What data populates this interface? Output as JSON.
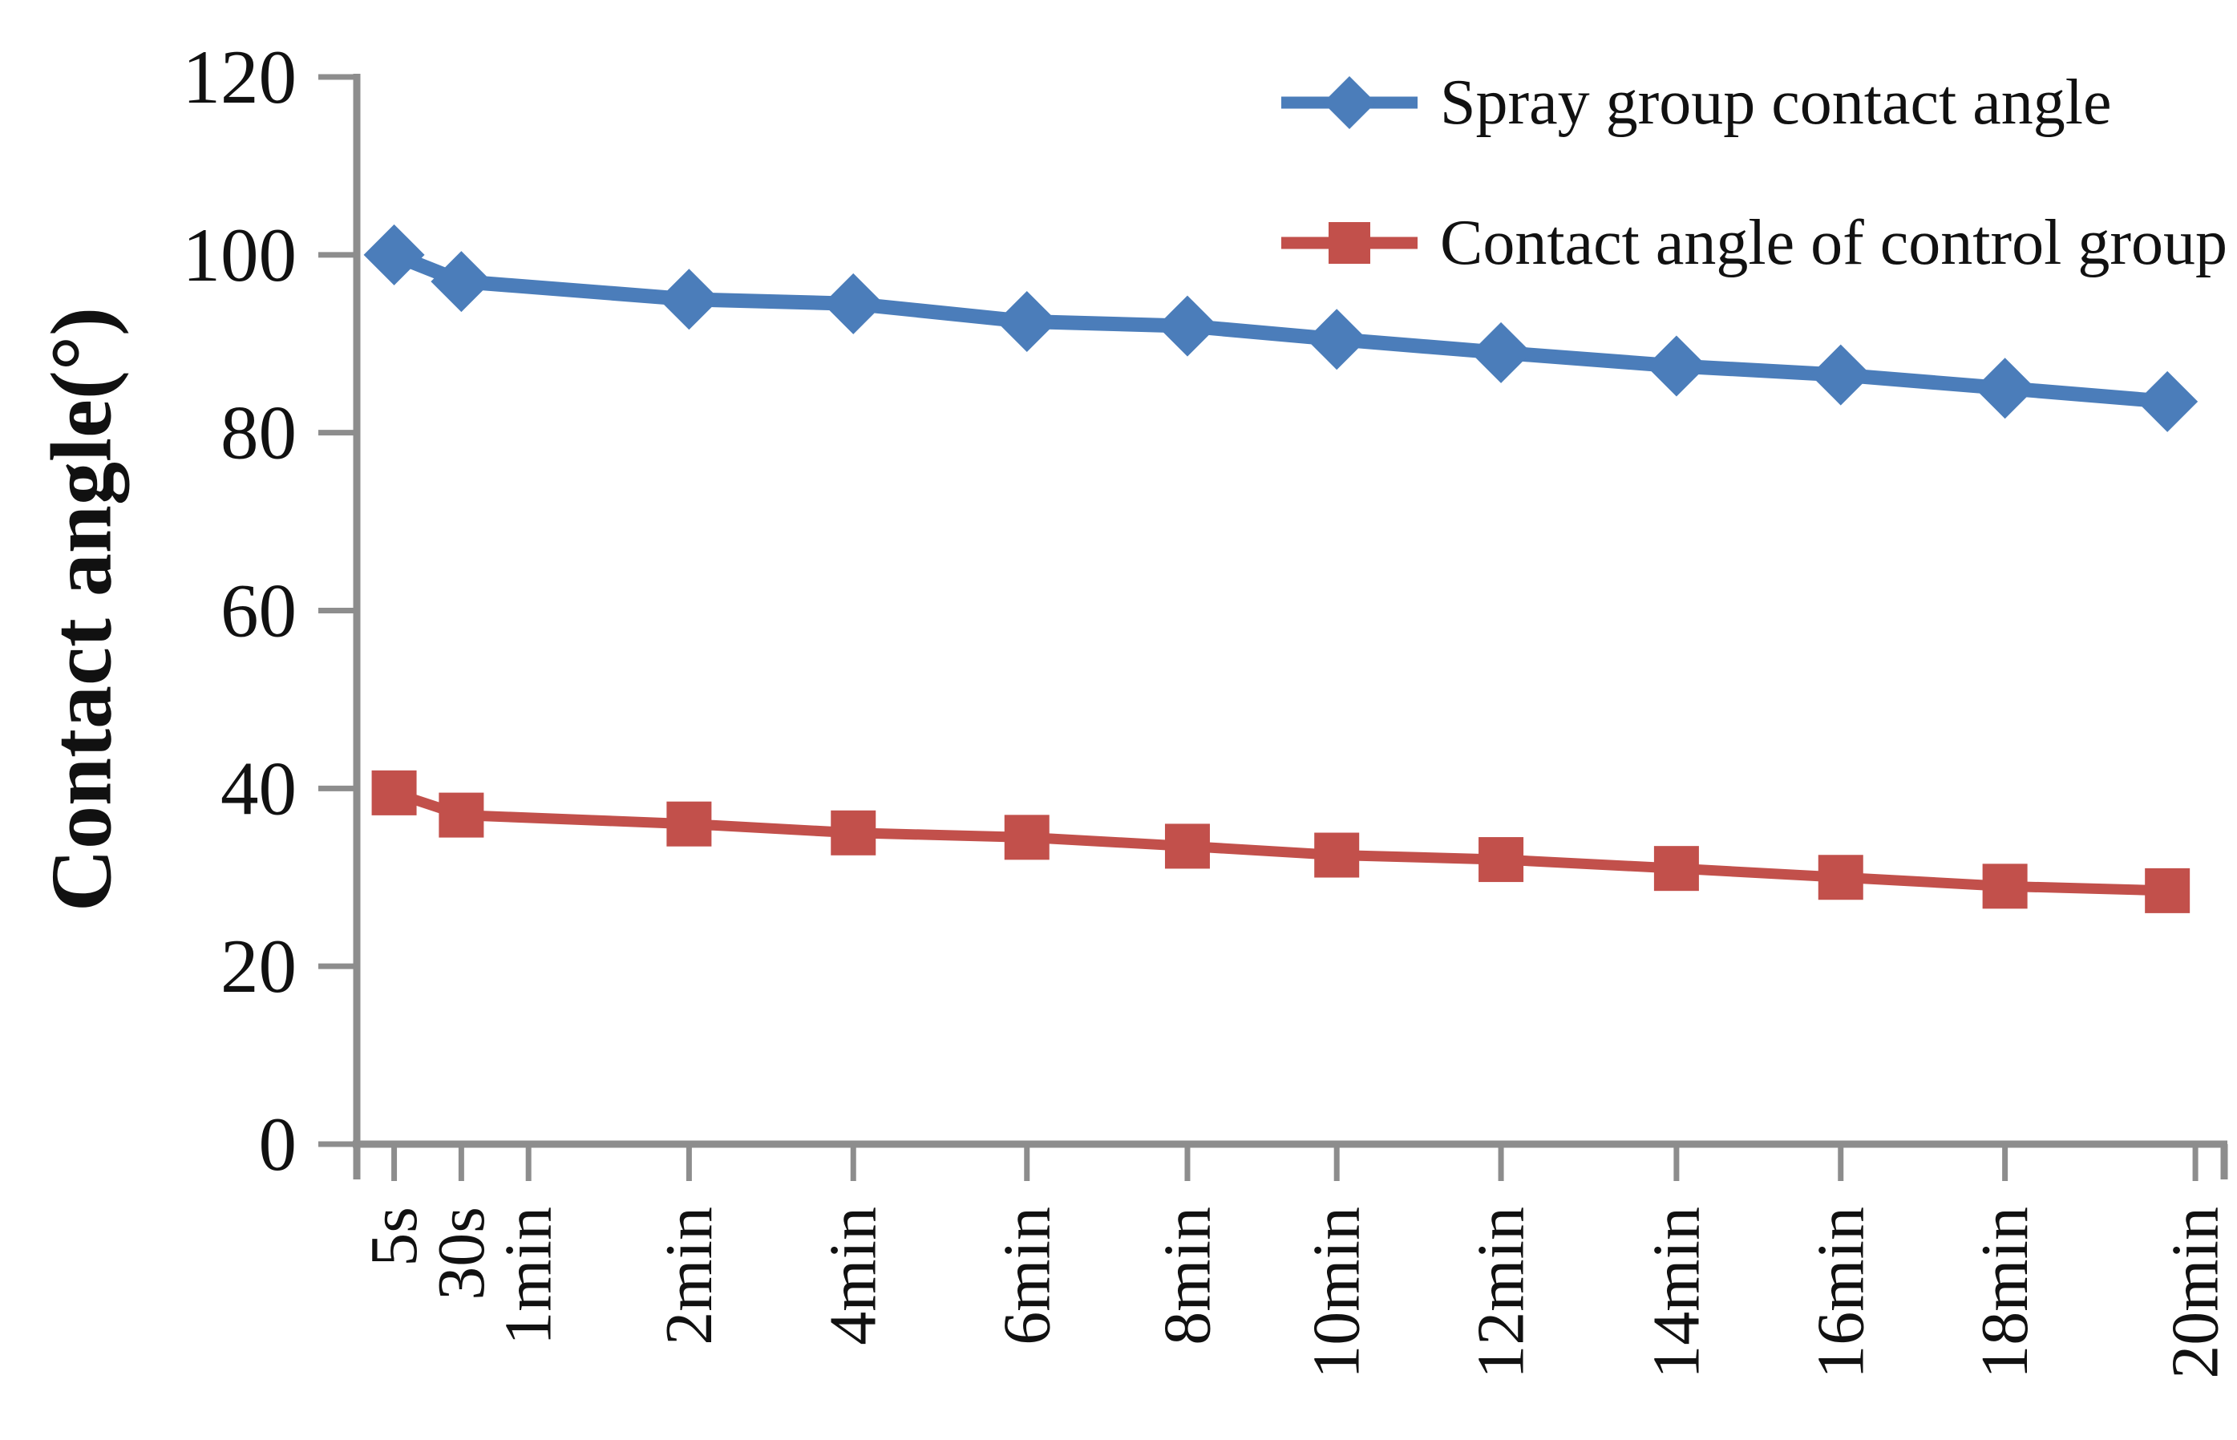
{
  "figure": {
    "background": "#ffffff",
    "axis_color": "#8d8d8d",
    "text_color": "#111111"
  },
  "chart_data": {
    "type": "line",
    "title": "",
    "xlabel": "",
    "ylabel": "Contact angle(°)",
    "ylim": [
      0,
      120
    ],
    "yticks": [
      0,
      20,
      40,
      60,
      80,
      100,
      120
    ],
    "categories": [
      "5s",
      "30s",
      "1min",
      "2min",
      "4min",
      "6min",
      "8min",
      "10min",
      "12min",
      "14min",
      "16min",
      "18min",
      "20min"
    ],
    "grid": false,
    "legend_position": "top-right",
    "series": [
      {
        "name": "Spray group contact angle",
        "color": "#4b7dba",
        "marker": "diamond",
        "points": [
          {
            "x": "5s",
            "y": 100
          },
          {
            "x": "30s",
            "y": 97
          },
          {
            "x": "2min",
            "y": 95
          },
          {
            "x": "4min",
            "y": 94.5
          },
          {
            "x": "6min",
            "y": 92.5
          },
          {
            "x": "8min",
            "y": 92
          },
          {
            "x": "10min",
            "y": 90.5
          },
          {
            "x": "12min",
            "y": 89
          },
          {
            "x": "14min",
            "y": 87.5
          },
          {
            "x": "16min",
            "y": 86.5
          },
          {
            "x": "18min",
            "y": 85
          },
          {
            "x": "20min",
            "y": 83.5
          }
        ]
      },
      {
        "name": "Contact angle of control group",
        "color": "#c2504b",
        "marker": "square",
        "points": [
          {
            "x": "5s",
            "y": 39.5
          },
          {
            "x": "30s",
            "y": 37
          },
          {
            "x": "2min",
            "y": 36
          },
          {
            "x": "4min",
            "y": 35
          },
          {
            "x": "6min",
            "y": 34.5
          },
          {
            "x": "8min",
            "y": 33.5
          },
          {
            "x": "10min",
            "y": 32.5
          },
          {
            "x": "12min",
            "y": 32
          },
          {
            "x": "14min",
            "y": 31
          },
          {
            "x": "16min",
            "y": 30
          },
          {
            "x": "18min",
            "y": 29
          },
          {
            "x": "20min",
            "y": 28.5
          }
        ]
      }
    ],
    "layout": {
      "category_x_fractions": {
        "5s": 0.02,
        "30s": 0.056,
        "1min": 0.092,
        "2min": 0.178,
        "4min": 0.266,
        "6min": 0.359,
        "8min": 0.445,
        "10min": 0.525,
        "12min": 0.613,
        "14min": 0.707,
        "16min": 0.795,
        "18min": 0.883,
        "20min": 0.985
      },
      "marker_x_fractions": {
        "5s": 0.02,
        "30s": 0.056,
        "2min": 0.178,
        "4min": 0.266,
        "6min": 0.359,
        "8min": 0.445,
        "10min": 0.525,
        "12min": 0.613,
        "14min": 0.707,
        "16min": 0.795,
        "18min": 0.883,
        "20min": 0.97
      }
    }
  }
}
